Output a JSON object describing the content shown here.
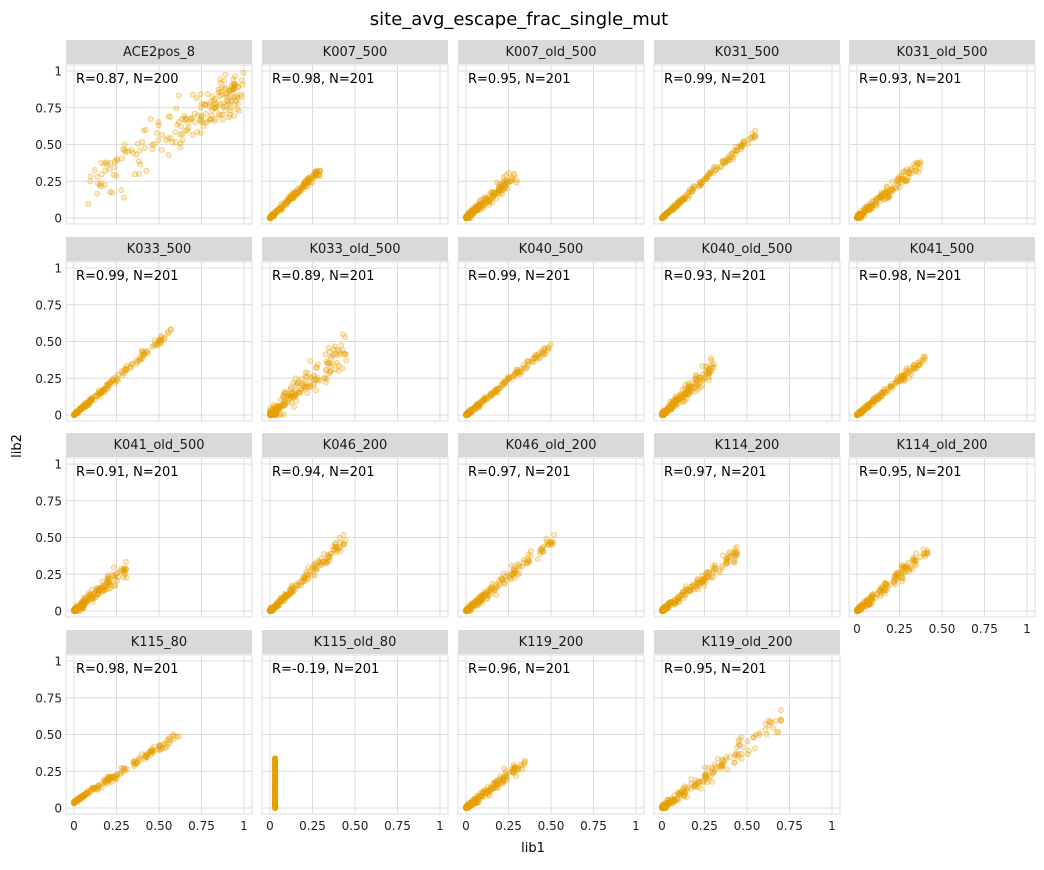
{
  "figure": {
    "title": "site_avg_escape_frac_single_mut",
    "xlabel": "lib1",
    "ylabel": "lib2",
    "point_color": "#E6A000",
    "strip_color": "#D9D9D9",
    "grid_color": "#DCDCDC"
  },
  "chart_data": {
    "type": "scatter",
    "xlim": [
      0,
      1
    ],
    "ylim": [
      0,
      1
    ],
    "x_ticks": [
      0,
      0.25,
      0.5,
      0.75,
      1
    ],
    "x_tick_labels": [
      "0",
      "0.25",
      "0.50",
      "0.75",
      "1"
    ],
    "y_ticks": [
      0,
      0.25,
      0.5,
      0.75,
      1
    ],
    "y_tick_labels": [
      "0",
      "0.25",
      "0.50",
      "0.75",
      "1"
    ],
    "panels": [
      {
        "name": "ACE2pos_8",
        "annotation": "R=0.87, N=200",
        "pattern": "cloud",
        "slope": 1.0,
        "spread": 0.12,
        "n": 200
      },
      {
        "name": "K007_500",
        "annotation": "R=0.98, N=201",
        "pattern": "linear",
        "slope": 1.1,
        "spread": 0.03,
        "xmax": 0.3,
        "n": 201
      },
      {
        "name": "K007_old_500",
        "annotation": "R=0.95, N=201",
        "pattern": "linear",
        "slope": 1.0,
        "spread": 0.05,
        "xmax": 0.3,
        "n": 201
      },
      {
        "name": "K031_500",
        "annotation": "R=0.99, N=201",
        "pattern": "linear",
        "slope": 1.05,
        "spread": 0.03,
        "xmax": 0.55,
        "n": 201
      },
      {
        "name": "K031_old_500",
        "annotation": "R=0.93, N=201",
        "pattern": "linear",
        "slope": 1.0,
        "spread": 0.05,
        "xmax": 0.38,
        "n": 201
      },
      {
        "name": "K033_500",
        "annotation": "R=0.99, N=201",
        "pattern": "linear",
        "slope": 1.0,
        "spread": 0.03,
        "xmax": 0.57,
        "n": 201
      },
      {
        "name": "K033_old_500",
        "annotation": "R=0.89, N=201",
        "pattern": "linear",
        "slope": 1.0,
        "spread": 0.12,
        "xmax": 0.45,
        "n": 201
      },
      {
        "name": "K040_500",
        "annotation": "R=0.99, N=201",
        "pattern": "linear",
        "slope": 0.95,
        "spread": 0.03,
        "xmax": 0.5,
        "n": 201
      },
      {
        "name": "K040_old_500",
        "annotation": "R=0.93, N=201",
        "pattern": "linear",
        "slope": 1.1,
        "spread": 0.06,
        "xmax": 0.32,
        "n": 201
      },
      {
        "name": "K041_500",
        "annotation": "R=0.98, N=201",
        "pattern": "linear",
        "slope": 0.95,
        "spread": 0.03,
        "xmax": 0.4,
        "n": 201
      },
      {
        "name": "K041_old_500",
        "annotation": "R=0.91, N=201",
        "pattern": "linear",
        "slope": 0.95,
        "spread": 0.06,
        "xmax": 0.32,
        "n": 201
      },
      {
        "name": "K046_200",
        "annotation": "R=0.94, N=201",
        "pattern": "linear",
        "slope": 1.1,
        "spread": 0.05,
        "xmax": 0.45,
        "n": 201
      },
      {
        "name": "K046_old_200",
        "annotation": "R=0.97, N=201",
        "pattern": "linear",
        "slope": 0.95,
        "spread": 0.05,
        "xmax": 0.52,
        "n": 201
      },
      {
        "name": "K114_200",
        "annotation": "R=0.97, N=201",
        "pattern": "linear",
        "slope": 0.9,
        "spread": 0.05,
        "xmax": 0.45,
        "n": 201
      },
      {
        "name": "K114_old_200",
        "annotation": "R=0.95, N=201",
        "pattern": "linear",
        "slope": 1.0,
        "spread": 0.05,
        "xmax": 0.42,
        "n": 201
      },
      {
        "name": "K115_80",
        "annotation": "R=0.98, N=201",
        "pattern": "linear",
        "slope": 0.75,
        "intercept": 0.04,
        "spread": 0.03,
        "xmax": 0.62,
        "n": 201
      },
      {
        "name": "K115_old_80",
        "annotation": "R=-0.19, N=201",
        "pattern": "vertical",
        "x0": 0.03,
        "ymax": 0.34,
        "n": 201
      },
      {
        "name": "K119_200",
        "annotation": "R=0.96, N=201",
        "pattern": "linear",
        "slope": 0.9,
        "spread": 0.04,
        "xmax": 0.35,
        "n": 201
      },
      {
        "name": "K119_old_200",
        "annotation": "R=0.95, N=201",
        "pattern": "linear",
        "slope": 0.85,
        "spread": 0.07,
        "xmax": 0.7,
        "n": 201
      }
    ]
  }
}
